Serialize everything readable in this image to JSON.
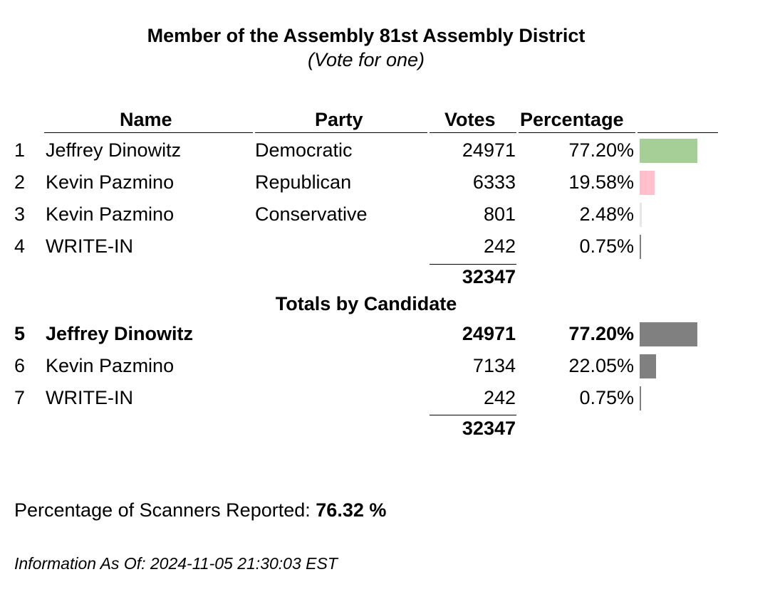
{
  "contest": {
    "title": "Member of the Assembly 81st Assembly District",
    "subtitle": "(Vote for one)"
  },
  "headers": {
    "name": "Name",
    "party": "Party",
    "votes": "Votes",
    "percentage": "Percentage"
  },
  "party_results": [
    {
      "num": "1",
      "name": "Jeffrey Dinowitz",
      "party": "Democratic",
      "votes": "24971",
      "pct": "77.20%",
      "pct_value": 77.2,
      "color": "#a6cf98"
    },
    {
      "num": "2",
      "name": "Kevin Pazmino",
      "party": "Republican",
      "votes": "6333",
      "pct": "19.58%",
      "pct_value": 19.58,
      "color": "#ffc0cb"
    },
    {
      "num": "3",
      "name": "Kevin Pazmino",
      "party": "Conservative",
      "votes": "801",
      "pct": "2.48%",
      "pct_value": 2.48,
      "color": "#e6e6e6"
    },
    {
      "num": "4",
      "name": "WRITE-IN",
      "party": "",
      "votes": "242",
      "pct": "0.75%",
      "pct_value": 0.75,
      "color": "#808080"
    }
  ],
  "party_total": "32347",
  "candidate_section_title": "Totals by Candidate",
  "candidate_results": [
    {
      "num": "5",
      "name": "Jeffrey Dinowitz",
      "votes": "24971",
      "pct": "77.20%",
      "pct_value": 77.2,
      "color": "#808080",
      "winner": true
    },
    {
      "num": "6",
      "name": "Kevin Pazmino",
      "votes": "7134",
      "pct": "22.05%",
      "pct_value": 22.05,
      "color": "#808080",
      "winner": false
    },
    {
      "num": "7",
      "name": "WRITE-IN",
      "votes": "242",
      "pct": "0.75%",
      "pct_value": 0.75,
      "color": "#808080",
      "winner": false
    }
  ],
  "candidate_total": "32347",
  "scanners": {
    "label": "Percentage of Scanners Reported:",
    "value": "76.32 %"
  },
  "as_of": "Information As Of: 2024-11-05 21:30:03 EST"
}
